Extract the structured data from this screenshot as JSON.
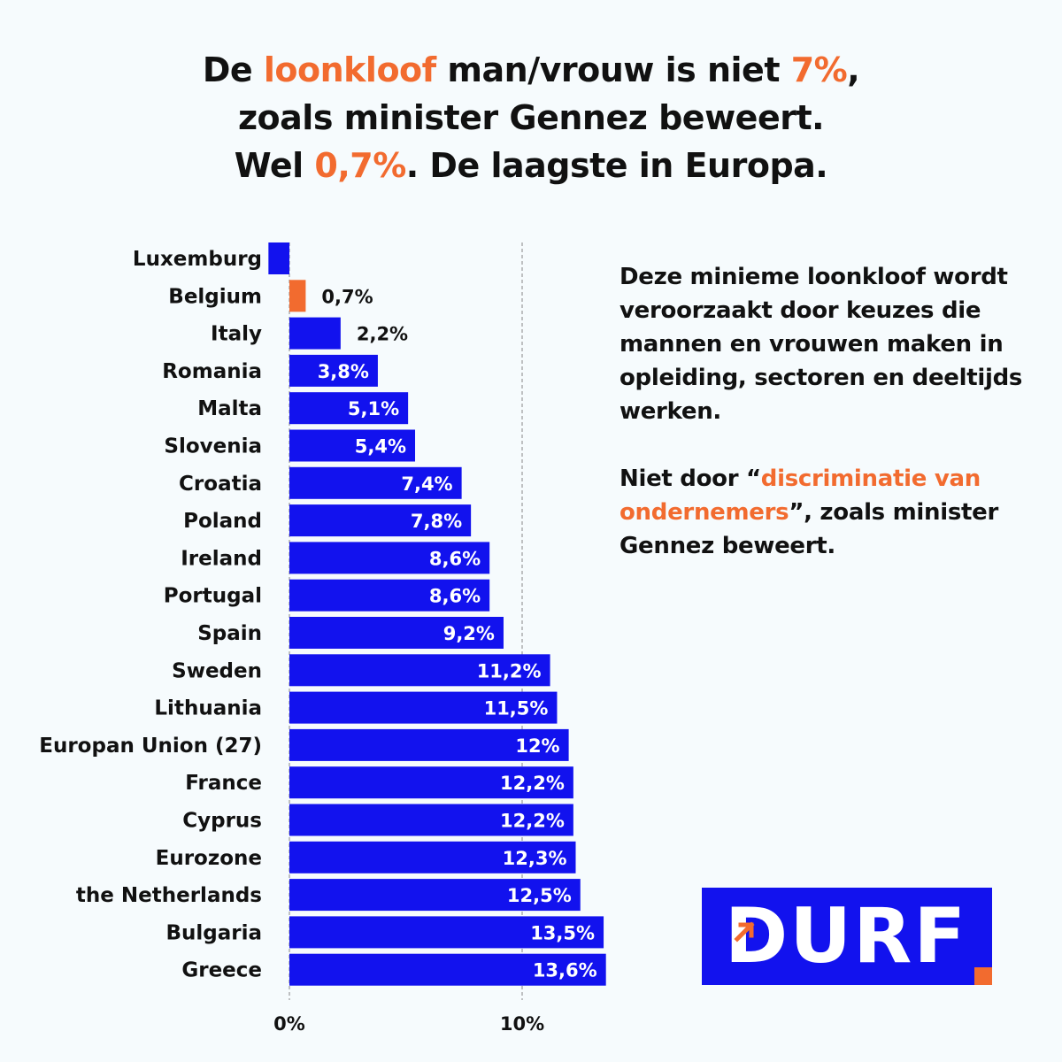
{
  "title": {
    "line1": [
      {
        "text": "De ",
        "highlight": false
      },
      {
        "text": "loonkloof",
        "highlight": true
      },
      {
        "text": " man/vrouw is niet ",
        "highlight": false
      },
      {
        "text": "7%",
        "highlight": true
      },
      {
        "text": ",",
        "highlight": false
      }
    ],
    "line2": [
      {
        "text": "zoals minister Gennez beweert.",
        "highlight": false
      }
    ],
    "line3": [
      {
        "text": "Wel ",
        "highlight": false
      },
      {
        "text": "0,7%",
        "highlight": true
      },
      {
        "text": ".  De laagste in Europa.",
        "highlight": false
      }
    ]
  },
  "side_text": {
    "para1": "Deze minieme loonkloof wordt veroorzaakt door keuzes die mannen en vrouwen maken in opleiding, sectoren en deeltijds werken.",
    "para2_a": "Niet door “",
    "para2_highlight": "discriminatie van ondernemers",
    "para2_b": "”, zoals minister Gennez beweert."
  },
  "logo": {
    "text": "DURF",
    "icon": "arrow-up-right-icon"
  },
  "colors": {
    "bar": "#1212ee",
    "highlight": "#f26b2f",
    "text": "#111111",
    "background": "#f6fbfd"
  },
  "chart_data": {
    "type": "bar",
    "orientation": "horizontal",
    "categories": [
      "Luxemburg",
      "Belgium",
      "Italy",
      "Romania",
      "Malta",
      "Slovenia",
      "Croatia",
      "Poland",
      "Ireland",
      "Portugal",
      "Spain",
      "Sweden",
      "Lithuania",
      "Europan Union (27)",
      "France",
      "Cyprus",
      "Eurozone",
      "the Netherlands",
      "Bulgaria",
      "Greece"
    ],
    "values": [
      -0.9,
      0.7,
      2.2,
      3.8,
      5.1,
      5.4,
      7.4,
      7.8,
      8.6,
      8.6,
      9.2,
      11.2,
      11.5,
      12,
      12.2,
      12.2,
      12.3,
      12.5,
      13.5,
      13.6
    ],
    "value_labels": [
      "",
      "0,7%",
      "2,2%",
      "3,8%",
      "5,1%",
      "5,4%",
      "7,4%",
      "7,8%",
      "8,6%",
      "8,6%",
      "9,2%",
      "11,2%",
      "11,5%",
      "12%",
      "12,2%",
      "12,2%",
      "12,3%",
      "12,5%",
      "13,5%",
      "13,6%"
    ],
    "highlight_index": 1,
    "xlim": [
      -0.9,
      15
    ],
    "xticks": [
      0,
      10
    ],
    "xtick_labels": [
      "0%",
      "10%"
    ],
    "grid": {
      "dashed_at": [
        0,
        10
      ]
    },
    "legend": "none"
  }
}
